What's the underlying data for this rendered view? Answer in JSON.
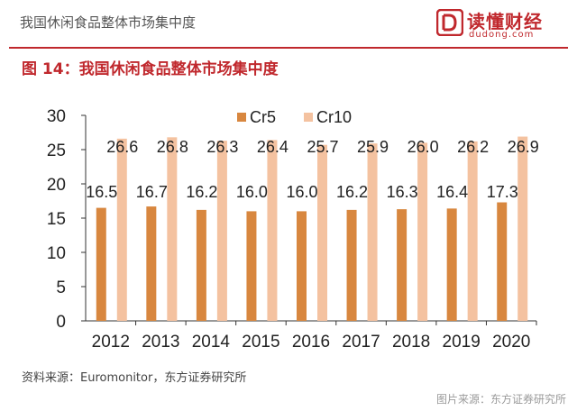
{
  "header": {
    "title": "我国休闲食品整体市场集中度",
    "logo_name": "读懂财经",
    "logo_domain": "dudong.com"
  },
  "figure": {
    "title": "图 14：我国休闲食品整体市场集中度",
    "source": "资料来源：Euromonitor，东方证券研究所",
    "watermark": "图片来源：东方证券研究所"
  },
  "colors": {
    "brand": "#c0282d",
    "cr5": "#d8873f",
    "cr10": "#f4c2a0"
  },
  "chart_data": {
    "type": "bar",
    "categories": [
      "2012",
      "2013",
      "2014",
      "2015",
      "2016",
      "2017",
      "2018",
      "2019",
      "2020"
    ],
    "series": [
      {
        "name": "Cr5",
        "values": [
          16.5,
          16.7,
          16.2,
          16.0,
          16.0,
          16.2,
          16.3,
          16.4,
          17.3
        ]
      },
      {
        "name": "Cr10",
        "values": [
          26.6,
          26.8,
          26.3,
          26.4,
          25.7,
          25.9,
          26.0,
          26.2,
          26.9
        ]
      }
    ],
    "value_labels": {
      "Cr5": [
        "16.5",
        "16.7",
        "16.2",
        "16.0",
        "16.0",
        "16.2",
        "16.3",
        "16.4",
        "17.3"
      ],
      "Cr10": [
        "26.6",
        "26.8",
        "26.3",
        "26.4",
        "25.7",
        "25.9",
        "26.0",
        "26.2",
        "26.9"
      ]
    },
    "y_ticks": [
      "0",
      "5",
      "10",
      "15",
      "20",
      "25",
      "30"
    ],
    "ylim": [
      0,
      30
    ],
    "grid": false,
    "legend": "top-center",
    "title": "",
    "xlabel": "",
    "ylabel": ""
  }
}
